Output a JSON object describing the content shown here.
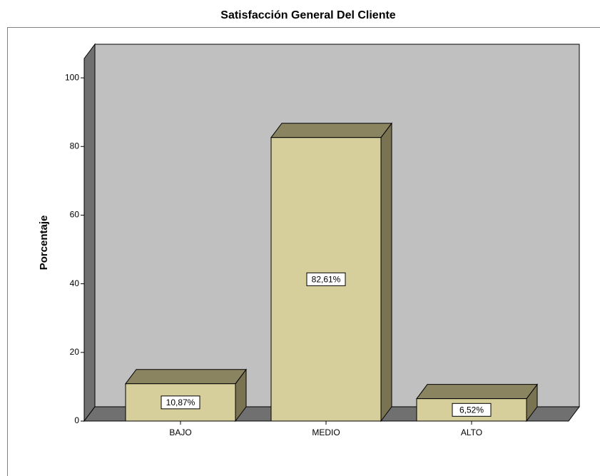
{
  "chart_data": {
    "type": "bar3d",
    "title": "Satisfacción General Del Cliente",
    "y_label": "Porcentaje",
    "categories": [
      "BAJO",
      "MEDIO",
      "ALTO"
    ],
    "values": [
      10.87,
      82.61,
      6.52
    ],
    "value_labels": [
      "10,87%",
      "82,61%",
      "6,52%"
    ],
    "color": "#d6cf9b",
    "ylim": [
      0,
      110
    ],
    "yticks": [
      0,
      20,
      40,
      60,
      80,
      100
    ]
  }
}
